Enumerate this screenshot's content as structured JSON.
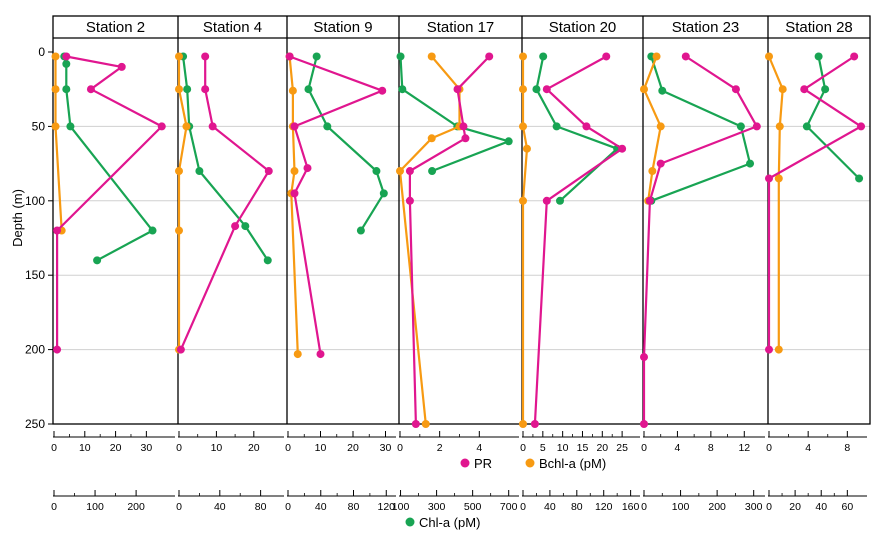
{
  "chart_data": {
    "type": "line",
    "y_axis": {
      "label": "Depth (m)",
      "ticks": [
        0,
        50,
        100,
        150,
        200,
        250
      ],
      "range": [
        0,
        250
      ],
      "inverted": true,
      "grid": true
    },
    "legend_top": [
      {
        "key": "pr",
        "label": "PR",
        "color": "#e0168f"
      },
      {
        "key": "bchl",
        "label": "Bchl-a (pM)",
        "color": "#f79a12"
      }
    ],
    "legend_bottom": [
      {
        "key": "chl",
        "label": "Chl-a (pM)",
        "color": "#18a453"
      }
    ],
    "colors": {
      "pr": "#e0168f",
      "bchl": "#f79a12",
      "chl": "#18a453",
      "overlap": "#9b59b6",
      "grid": "#d0d0d0"
    },
    "panels": [
      {
        "title": "Station 2",
        "top_axis": {
          "ticks": [
            "0",
            "10",
            "20",
            "30"
          ],
          "max": 38
        },
        "bottom_axis": {
          "ticks": [
            "0",
            "100",
            "200"
          ],
          "max": 285
        },
        "series": {
          "pr": {
            "x": [
              4,
              22,
              12,
              35,
              1,
              1
            ],
            "y": [
              3,
              10,
              25,
              50,
              120,
              200
            ]
          },
          "bchl": {
            "x": [
              0.5,
              0.5,
              0.5,
              2.5
            ],
            "y": [
              3,
              25,
              50,
              120
            ]
          },
          "chl": {
            "x": [
              25,
              30,
              30,
              40,
              240,
              105
            ],
            "y": [
              3,
              8,
              25,
              50,
              120,
              140
            ]
          }
        }
      },
      {
        "title": "Station 4",
        "top_axis": {
          "ticks": [
            "0",
            "10",
            "20"
          ],
          "max": 27
        },
        "bottom_axis": {
          "ticks": [
            "0",
            "40",
            "80"
          ],
          "max": 99
        },
        "series": {
          "pr": {
            "x": [
              7,
              7,
              9,
              24,
              15,
              0.5
            ],
            "y": [
              3,
              25,
              50,
              80,
              117,
              200
            ]
          },
          "bchl": {
            "x": [
              0,
              0,
              2,
              0,
              0,
              0
            ],
            "y": [
              3,
              25,
              50,
              80,
              120,
              200
            ]
          },
          "chl": {
            "x": [
              4,
              8,
              10,
              20,
              65,
              87
            ],
            "y": [
              3,
              25,
              50,
              80,
              117,
              140
            ]
          }
        }
      },
      {
        "title": "Station 9",
        "top_axis": {
          "ticks": [
            "0",
            "10",
            "20",
            "30"
          ],
          "max": 32
        },
        "bottom_axis": {
          "ticks": [
            "0",
            "40",
            "80",
            "120"
          ],
          "max": 127
        },
        "series": {
          "pr": {
            "x": [
              0.5,
              29,
              2,
              6,
              2,
              10
            ],
            "y": [
              3,
              26,
              50,
              78,
              95,
              203
            ]
          },
          "bchl": {
            "x": [
              0.5,
              1.5,
              1.5,
              2,
              1,
              3
            ],
            "y": [
              3,
              26,
              50,
              80,
              95,
              203
            ]
          },
          "chl": {
            "x": [
              35,
              25,
              48,
              108,
              117,
              89
            ],
            "y": [
              3,
              25,
              50,
              80,
              95,
              120
            ]
          }
        }
      },
      {
        "title": "Station 17",
        "top_axis": {
          "ticks": [
            "0",
            "2",
            "4"
          ],
          "max": 5.8
        },
        "bottom_axis": {
          "ticks": [
            "100",
            "300",
            "500",
            "700"
          ],
          "min": 97,
          "max": 735
        },
        "series": {
          "pr": {
            "x": [
              4.5,
              2.9,
              3.2,
              3.3,
              0.5,
              0.5,
              0.8
            ],
            "y": [
              3,
              25,
              50,
              58,
              80,
              100,
              250
            ]
          },
          "bchl": {
            "x": [
              1.6,
              3,
              3,
              1.6,
              0,
              1.3
            ],
            "y": [
              3,
              25,
              50,
              58,
              80,
              250
            ]
          },
          "chl": {
            "x": [
              100,
              110,
              415,
              700,
              275
            ],
            "y": [
              3,
              25,
              50,
              60,
              80
            ]
          }
        }
      },
      {
        "title": "Station 20",
        "top_axis": {
          "ticks": [
            "0",
            "5",
            "10",
            "15",
            "20",
            "25"
          ],
          "max": 28.5
        },
        "bottom_axis": {
          "ticks": [
            "0",
            "40",
            "80",
            "120",
            "160"
          ],
          "max": 168
        },
        "series": {
          "pr": {
            "x": [
              21,
              6,
              16,
              25,
              6,
              3
            ],
            "y": [
              3,
              25,
              50,
              65,
              100,
              250
            ]
          },
          "bchl": {
            "x": [
              0,
              0,
              0,
              1,
              0,
              0
            ],
            "y": [
              3,
              25,
              50,
              65,
              100,
              250
            ]
          },
          "chl": {
            "x": [
              30,
              20,
              50,
              140,
              55
            ],
            "y": [
              3,
              25,
              50,
              65,
              100
            ]
          }
        }
      },
      {
        "title": "Station 23",
        "top_axis": {
          "ticks": [
            "0",
            "4",
            "8",
            "12"
          ],
          "max": 14
        },
        "bottom_axis": {
          "ticks": [
            "0",
            "100",
            "200",
            "300"
          ],
          "max": 320
        },
        "series": {
          "pr": {
            "x": [
              5,
              11,
              13.5,
              2,
              0.7,
              0,
              0
            ],
            "y": [
              3,
              25,
              50,
              75,
              100,
              205,
              250
            ]
          },
          "bchl": {
            "x": [
              1.5,
              0,
              2,
              1,
              0.5
            ],
            "y": [
              3,
              25,
              50,
              80,
              100
            ]
          },
          "chl": {
            "x": [
              20,
              50,
              265,
              290,
              20
            ],
            "y": [
              3,
              26,
              50,
              75,
              100
            ]
          }
        }
      },
      {
        "title": "Station 28",
        "top_axis": {
          "ticks": [
            "0",
            "4",
            "8"
          ],
          "max": 9.6
        },
        "bottom_axis": {
          "ticks": [
            "0",
            "20",
            "40",
            "60"
          ],
          "max": 72
        },
        "series": {
          "pr": {
            "x": [
              8.7,
              3.6,
              9.4,
              0,
              0
            ],
            "y": [
              3,
              25,
              50,
              85,
              200
            ]
          },
          "bchl": {
            "x": [
              0,
              1.4,
              1.1,
              1,
              1
            ],
            "y": [
              3,
              25,
              50,
              85,
              200
            ]
          },
          "chl": {
            "x": [
              38,
              43,
              29,
              69
            ],
            "y": [
              3,
              25,
              50,
              85
            ]
          }
        }
      }
    ]
  }
}
